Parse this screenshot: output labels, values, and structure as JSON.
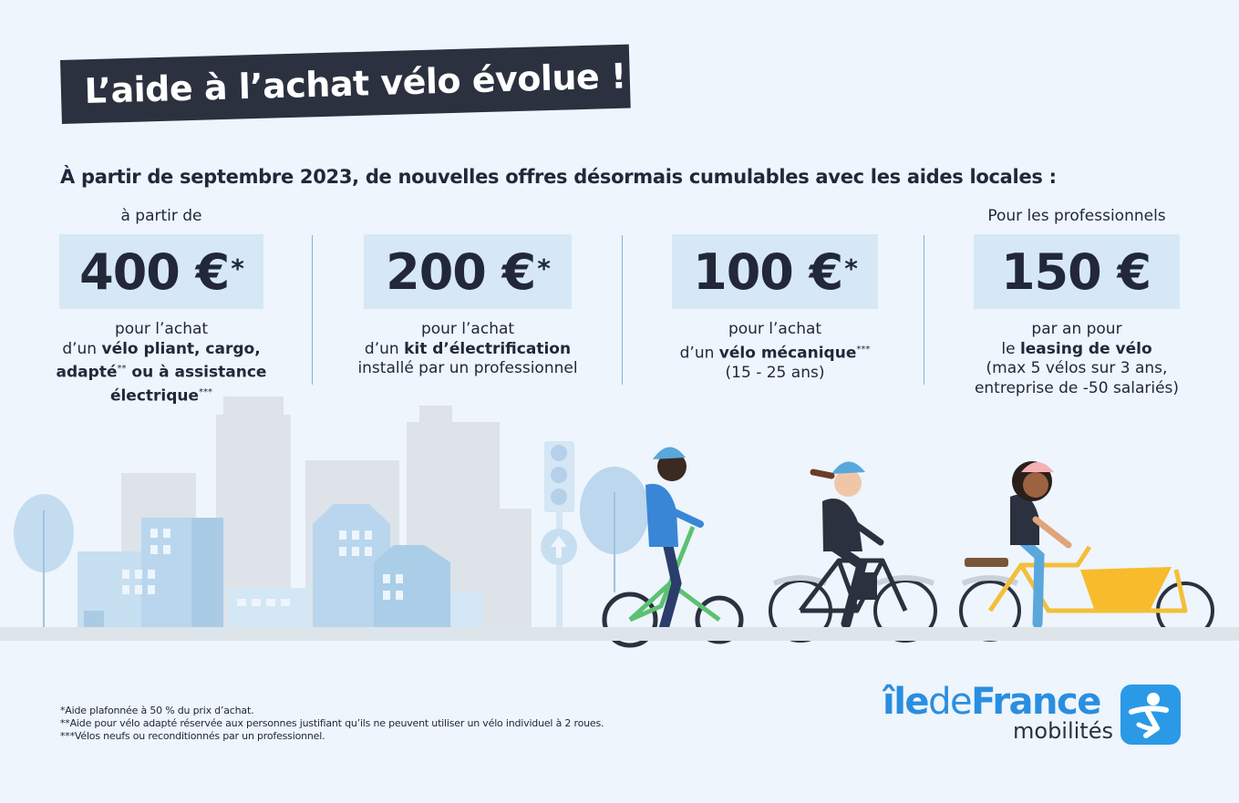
{
  "title": "L’aide à l’achat vélo évolue !",
  "subtitle": "À partir de septembre 2023, de nouvelles offres désormais cumulables avec les aides locales :",
  "offers": [
    {
      "pre": "à partir de",
      "amount": "400 €",
      "star": "*",
      "l1": "pour l’achat",
      "l2a": "d’un ",
      "l2b": "vélo pliant, cargo,",
      "l3a": "adapté",
      "l3sup": "**",
      "l3b": " ou à assistance",
      "l4a": "électrique",
      "l4sup": "***"
    },
    {
      "pre": "",
      "amount": "200 €",
      "star": "*",
      "l1": "pour l’achat",
      "l2a": "d’un ",
      "l2b": "kit d’électrification",
      "l3": "installé par un professionnel"
    },
    {
      "pre": "",
      "amount": "100 €",
      "star": "*",
      "l1": "pour l’achat",
      "l2a": "d’un ",
      "l2b": "vélo mécanique",
      "l2sup": "***",
      "l3": "(15 - 25 ans)"
    },
    {
      "pre": "Pour les professionnels",
      "amount": "150 €",
      "star": "",
      "l1": "par an pour",
      "l2a": "le ",
      "l2b": "leasing de vélo",
      "l3": "(max 5 vélos sur 3 ans,",
      "l4": "entreprise de -50 salariés)"
    }
  ],
  "footnotes": [
    "*Aide plafonnée à 50 % du prix d’achat.",
    "**Aide pour vélo adapté réservée aux personnes justifiant qu’ils ne peuvent utiliser un vélo individuel à 2 roues.",
    "***Vélos neufs ou reconditionnés par un professionnel."
  ],
  "logo": {
    "part1": "île",
    "part2": "de",
    "part3": "France",
    "sub": "mobilités"
  },
  "colors": {
    "background": "#eef5fc",
    "banner": "#2b313f",
    "amount_box": "#d6e8f5",
    "separator": "#7fb3da",
    "brand_blue": "#2a9ae6"
  }
}
